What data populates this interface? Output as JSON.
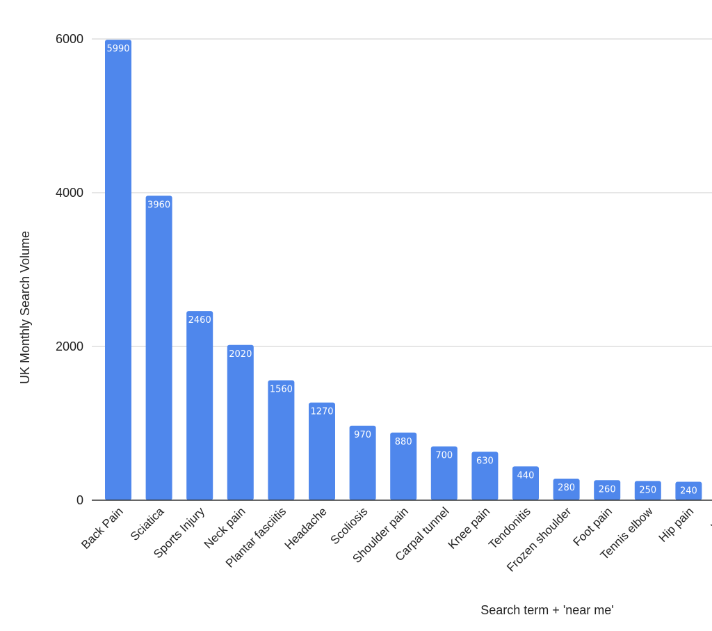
{
  "chart_data": {
    "type": "bar",
    "xlabel": "Search term + 'near me'",
    "ylabel": "UK Monthly Search Volume",
    "ylim": [
      0,
      6000
    ],
    "yticks": [
      0,
      2000,
      4000,
      6000
    ],
    "grid": true,
    "legend": "none",
    "bar_color": "#4f87ec",
    "categories": [
      "Back Pain",
      "Sciatica",
      "Sports Injury",
      "Neck pain",
      "Plantar fasciitis",
      "Headache",
      "Scoliosis",
      "Shoulder pain",
      "Carpal tunnel",
      "Knee pain",
      "Tendonitis",
      "Frozen shoulder",
      "Foot pain",
      "Tennis elbow",
      "Hip pain",
      "Wrist"
    ],
    "values": [
      5990,
      3960,
      2460,
      2020,
      1560,
      1270,
      970,
      880,
      700,
      630,
      440,
      280,
      260,
      250,
      240,
      null
    ],
    "data_labels": [
      "5990",
      "3960",
      "2460",
      "2020",
      "1560",
      "1270",
      "970",
      "880",
      "700",
      "630",
      "440",
      "280",
      "260",
      "250",
      "240",
      ""
    ]
  }
}
